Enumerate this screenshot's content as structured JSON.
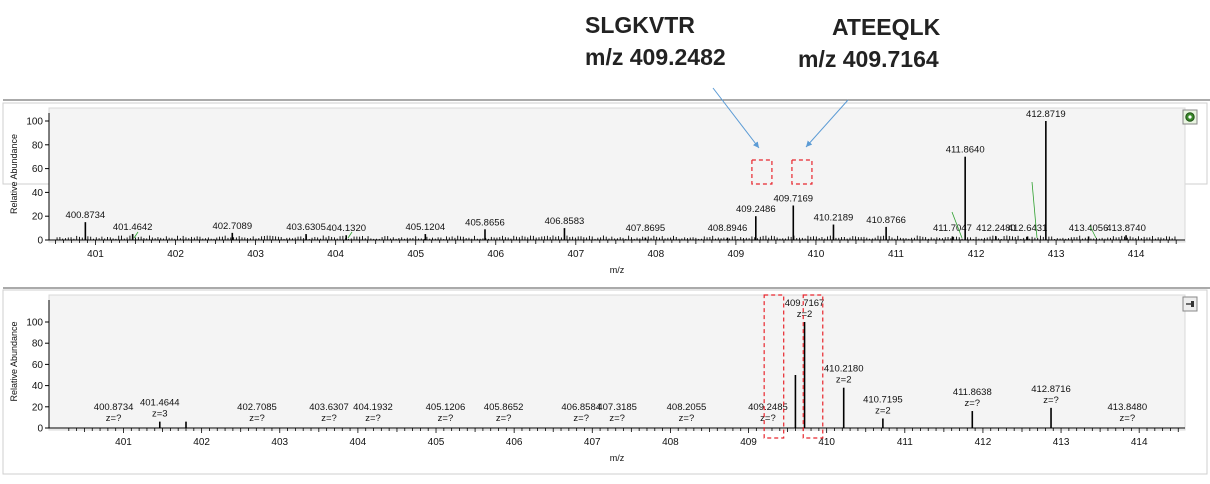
{
  "callouts": [
    {
      "name": "SLGKVTR",
      "mz": "m/z  409.2482"
    },
    {
      "name": "ATEEQLK",
      "mz": "m/z  409.7164"
    }
  ],
  "colors": {
    "spectrum": "#000000",
    "highlight": "#e8262d",
    "arrow": "#5b9bd5",
    "leader": "#2ca02c",
    "panel_bg": "#f4f4f4"
  },
  "panel_icons": [
    "lock-icon",
    "pin-icon"
  ],
  "chart_data": [
    {
      "type": "bar",
      "xlabel": "m/z",
      "ylabel": "Relative Abundance",
      "xlim": [
        400.5,
        414.5
      ],
      "ylim": [
        0,
        100
      ],
      "xticks": [
        "401",
        "402",
        "403",
        "404",
        "405",
        "406",
        "407",
        "408",
        "409",
        "410",
        "411",
        "412",
        "413",
        "414"
      ],
      "yticks": [
        "0",
        "20",
        "40",
        "60",
        "80",
        "100"
      ],
      "peaks": [
        {
          "mz": 400.8734,
          "intensity": 15,
          "label": "400.8734"
        },
        {
          "mz": 401.4642,
          "intensity": 5,
          "label": "401.4642"
        },
        {
          "mz": 402.7089,
          "intensity": 6,
          "label": "402.7089"
        },
        {
          "mz": 403.6305,
          "intensity": 5,
          "label": "403.6305"
        },
        {
          "mz": 404.132,
          "intensity": 4,
          "label": "404.1320"
        },
        {
          "mz": 405.1204,
          "intensity": 5,
          "label": "405.1204"
        },
        {
          "mz": 405.8656,
          "intensity": 9,
          "label": "405.8656"
        },
        {
          "mz": 406.8583,
          "intensity": 10,
          "label": "406.8583"
        },
        {
          "mz": 407.8695,
          "intensity": 2,
          "label": "407.8695"
        },
        {
          "mz": 408.8946,
          "intensity": 2,
          "label": "408.8946"
        },
        {
          "mz": 409.2486,
          "intensity": 20,
          "label": "409.2486"
        },
        {
          "mz": 409.7169,
          "intensity": 29,
          "label": "409.7169"
        },
        {
          "mz": 410.2189,
          "intensity": 13,
          "label": "410.2189"
        },
        {
          "mz": 410.8766,
          "intensity": 11,
          "label": "410.8766"
        },
        {
          "mz": 411.7047,
          "intensity": 3,
          "label": "411.7047"
        },
        {
          "mz": 411.864,
          "intensity": 70,
          "label": "411.8640"
        },
        {
          "mz": 412.248,
          "intensity": 3,
          "label": "412.2480"
        },
        {
          "mz": 412.6431,
          "intensity": 3,
          "label": "412.6431"
        },
        {
          "mz": 412.8719,
          "intensity": 100,
          "label": "412.8719"
        },
        {
          "mz": 413.4056,
          "intensity": 3,
          "label": "413.4056"
        },
        {
          "mz": 413.874,
          "intensity": 4,
          "label": "413.8740"
        }
      ],
      "highlight_ranges": [
        [
          409.2,
          409.45
        ],
        [
          409.7,
          409.95
        ]
      ]
    },
    {
      "type": "bar",
      "xlabel": "m/z",
      "ylabel": "Relative Abundance",
      "xlim": [
        400.3,
        414.5
      ],
      "ylim": [
        0,
        100
      ],
      "xticks": [
        "401",
        "402",
        "403",
        "404",
        "405",
        "406",
        "407",
        "408",
        "409",
        "410",
        "411",
        "412",
        "413",
        "414"
      ],
      "yticks": [
        "0",
        "20",
        "40",
        "60",
        "80",
        "100"
      ],
      "peaks": [
        {
          "mz": 400.8734,
          "intensity": 0,
          "label": "400.8734",
          "charge": "z=?"
        },
        {
          "mz": 401.4644,
          "intensity": 6,
          "label": "401.4644",
          "charge": "z=3"
        },
        {
          "mz": 402.7085,
          "intensity": 0,
          "label": "402.7085",
          "charge": "z=?"
        },
        {
          "mz": 403.6307,
          "intensity": 0,
          "label": "403.6307",
          "charge": "z=?"
        },
        {
          "mz": 404.1932,
          "intensity": 0,
          "label": "404.1932",
          "charge": "z=?"
        },
        {
          "mz": 405.1206,
          "intensity": 0,
          "label": "405.1206",
          "charge": "z=?"
        },
        {
          "mz": 405.8652,
          "intensity": 0,
          "label": "405.8652",
          "charge": "z=?"
        },
        {
          "mz": 406.8584,
          "intensity": 0,
          "label": "406.8584",
          "charge": "z=?"
        },
        {
          "mz": 407.3185,
          "intensity": 0,
          "label": "407.3185",
          "charge": "z=?"
        },
        {
          "mz": 408.2055,
          "intensity": 0,
          "label": "408.2055",
          "charge": "z=?"
        },
        {
          "mz": 409.2485,
          "intensity": 0,
          "label": "409.2485",
          "charge": "z=?"
        },
        {
          "mz": 409.7167,
          "intensity": 100,
          "label": "409.7167",
          "charge": "z=2"
        },
        {
          "mz": 410.218,
          "intensity": 38,
          "label": "410.2180",
          "charge": "z=2"
        },
        {
          "mz": 410.7195,
          "intensity": 9,
          "label": "410.7195",
          "charge": "z=2"
        },
        {
          "mz": 411.8638,
          "intensity": 16,
          "label": "411.8638",
          "charge": "z=?"
        },
        {
          "mz": 412.8716,
          "intensity": 19,
          "label": "412.8716",
          "charge": "z=?"
        },
        {
          "mz": 413.848,
          "intensity": 0,
          "label": "413.8480",
          "charge": "z=?"
        }
      ],
      "extra_peaks": [
        {
          "mz": 401.8,
          "intensity": 6
        },
        {
          "mz": 409.6,
          "intensity": 50
        }
      ],
      "highlight_ranges": [
        [
          409.2,
          409.45
        ],
        [
          409.7,
          409.95
        ]
      ]
    }
  ]
}
